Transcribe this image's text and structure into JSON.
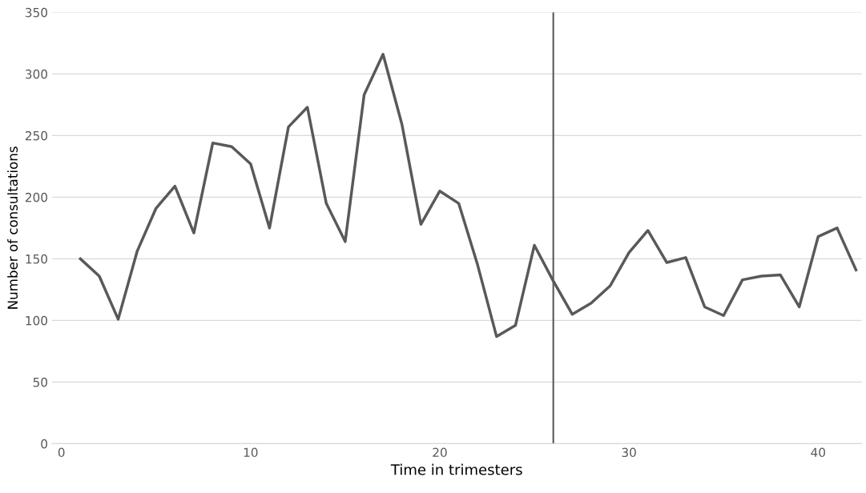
{
  "chart_data": {
    "type": "line",
    "xlabel": "Time in trimesters",
    "ylabel": "Number of consultations",
    "x": [
      1,
      2,
      3,
      4,
      5,
      6,
      7,
      8,
      9,
      10,
      11,
      12,
      13,
      14,
      15,
      16,
      17,
      18,
      19,
      20,
      21,
      22,
      23,
      24,
      25,
      26,
      27,
      28,
      29,
      30,
      31,
      32,
      33,
      34,
      35,
      36,
      37,
      38,
      39,
      40,
      41,
      42
    ],
    "series": [
      {
        "color": "#595959",
        "values": [
          150,
          136,
          101,
          156,
          191,
          209,
          171,
          244,
          241,
          227,
          175,
          257,
          273,
          195,
          164,
          283,
          316,
          259,
          178,
          205,
          195,
          145,
          87,
          96,
          161,
          132,
          105,
          114,
          128,
          155,
          173,
          147,
          151,
          111,
          104,
          133,
          136,
          137,
          111,
          168,
          175,
          141
        ]
      }
    ],
    "xlim": [
      -0.5,
      42.3
    ],
    "xticks": [
      0,
      10,
      20,
      30,
      40
    ],
    "ylim": [
      0,
      350
    ],
    "yticks": [
      0,
      50,
      100,
      150,
      200,
      250,
      300,
      350
    ],
    "grid": "y",
    "marker": "none",
    "line_style": "solid",
    "ref_lines": [
      {
        "axis": "x",
        "value": 26,
        "color": "#595959"
      }
    ]
  }
}
